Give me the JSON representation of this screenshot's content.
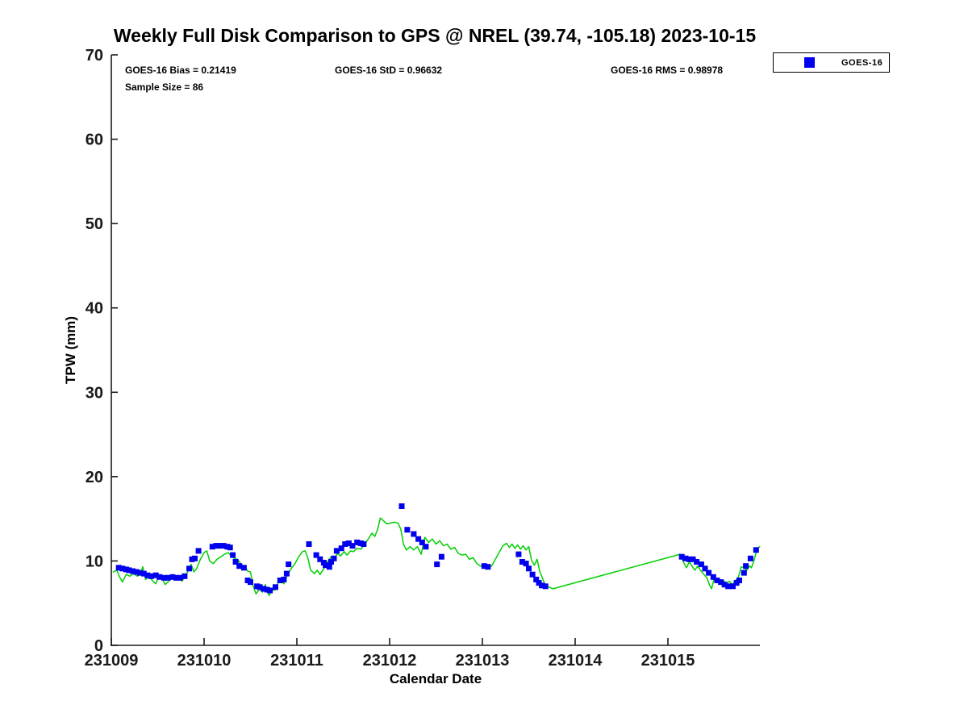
{
  "title": "Weekly Full Disk Comparison to GPS @ NREL (39.74, -105.18) 2023-10-15",
  "stats": {
    "bias": "GOES-16 Bias = 0.21419",
    "std": "GOES-16 StD = 0.96632",
    "rms": "GOES-16 RMS = 0.98978",
    "sample": "Sample Size = 86"
  },
  "legend": {
    "entries": [
      {
        "label": "GOES-16",
        "marker": "square",
        "color": "#0000ee"
      }
    ]
  },
  "chart_data": {
    "type": "line",
    "title": "Weekly Full Disk Comparison to GPS @ NREL (39.74, -105.18) 2023-10-15",
    "xlabel": "Calendar Date",
    "ylabel": "TPW (mm)",
    "xlim": [
      231009,
      231016
    ],
    "ylim": [
      0,
      70
    ],
    "x_ticks": [
      {
        "value": 231009,
        "label": "231009"
      },
      {
        "value": 231010,
        "label": "231010"
      },
      {
        "value": 231011,
        "label": "231011"
      },
      {
        "value": 231012,
        "label": "231012"
      },
      {
        "value": 231013,
        "label": "231013"
      },
      {
        "value": 231014,
        "label": "231014"
      },
      {
        "value": 231015,
        "label": "231015"
      }
    ],
    "y_ticks": [
      0,
      10,
      20,
      30,
      40,
      50,
      60,
      70
    ],
    "grid": false,
    "legend_position": "top-right",
    "sample_size": 86,
    "series": [
      {
        "name": "GPS",
        "type": "line",
        "color": "#00d000",
        "points": [
          [
            231009.02,
            8.7
          ],
          [
            231009.06,
            8.9
          ],
          [
            231009.09,
            8.1
          ],
          [
            231009.12,
            7.5
          ],
          [
            231009.16,
            8.4
          ],
          [
            231009.2,
            8.2
          ],
          [
            231009.24,
            8.5
          ],
          [
            231009.28,
            8.2
          ],
          [
            231009.31,
            8.4
          ],
          [
            231009.34,
            9.3
          ],
          [
            231009.37,
            7.8
          ],
          [
            231009.41,
            8.2
          ],
          [
            231009.44,
            7.7
          ],
          [
            231009.48,
            7.3
          ],
          [
            231009.51,
            8.2
          ],
          [
            231009.55,
            7.9
          ],
          [
            231009.58,
            7.2
          ],
          [
            231009.62,
            7.6
          ],
          [
            231009.65,
            8.3
          ],
          [
            231009.69,
            7.9
          ],
          [
            231009.72,
            8.3
          ],
          [
            231009.76,
            7.6
          ],
          [
            231009.8,
            8.2
          ],
          [
            231009.83,
            8.9
          ],
          [
            231009.86,
            9.6
          ],
          [
            231009.89,
            8.7
          ],
          [
            231009.92,
            9.1
          ],
          [
            231009.96,
            10.2
          ],
          [
            231010.0,
            11.0
          ],
          [
            231010.03,
            11.2
          ],
          [
            231010.06,
            10.0
          ],
          [
            231010.1,
            9.7
          ],
          [
            231010.14,
            10.2
          ],
          [
            231010.18,
            10.5
          ],
          [
            231010.22,
            10.8
          ],
          [
            231010.26,
            11.0
          ],
          [
            231010.3,
            10.5
          ],
          [
            231010.33,
            10.3
          ],
          [
            231010.36,
            10.2
          ],
          [
            231010.4,
            9.6
          ],
          [
            231010.44,
            9.3
          ],
          [
            231010.47,
            8.8
          ],
          [
            231010.5,
            8.7
          ],
          [
            231010.53,
            7.0
          ],
          [
            231010.56,
            6.1
          ],
          [
            231010.6,
            6.7
          ],
          [
            231010.63,
            6.3
          ],
          [
            231010.66,
            7.2
          ],
          [
            231010.7,
            5.9
          ],
          [
            231010.73,
            6.5
          ],
          [
            231010.77,
            6.6
          ],
          [
            231010.8,
            7.5
          ],
          [
            231010.83,
            7.9
          ],
          [
            231010.86,
            7.3
          ],
          [
            231010.9,
            8.4
          ],
          [
            231010.94,
            9.1
          ],
          [
            231010.98,
            9.7
          ],
          [
            231011.02,
            10.5
          ],
          [
            231011.06,
            11.1
          ],
          [
            231011.09,
            11.2
          ],
          [
            231011.12,
            10.3
          ],
          [
            231011.15,
            8.9
          ],
          [
            231011.19,
            8.5
          ],
          [
            231011.22,
            8.9
          ],
          [
            231011.25,
            8.4
          ],
          [
            231011.29,
            9.1
          ],
          [
            231011.33,
            9.9
          ],
          [
            231011.37,
            10.5
          ],
          [
            231011.41,
            10.4
          ],
          [
            231011.44,
            10.9
          ],
          [
            231011.47,
            10.6
          ],
          [
            231011.51,
            11.1
          ],
          [
            231011.54,
            10.7
          ],
          [
            231011.58,
            11.2
          ],
          [
            231011.61,
            11.1
          ],
          [
            231011.65,
            11.5
          ],
          [
            231011.69,
            11.4
          ],
          [
            231011.73,
            12.0
          ],
          [
            231011.77,
            12.6
          ],
          [
            231011.81,
            13.3
          ],
          [
            231011.84,
            12.9
          ],
          [
            231011.87,
            13.7
          ],
          [
            231011.9,
            15.1
          ],
          [
            231011.93,
            14.8
          ],
          [
            231011.97,
            14.4
          ],
          [
            231012.01,
            14.5
          ],
          [
            231012.05,
            14.6
          ],
          [
            231012.09,
            14.5
          ],
          [
            231012.12,
            13.8
          ],
          [
            231012.15,
            12.0
          ],
          [
            231012.18,
            11.3
          ],
          [
            231012.22,
            11.7
          ],
          [
            231012.26,
            11.3
          ],
          [
            231012.3,
            11.7
          ],
          [
            231012.34,
            10.8
          ],
          [
            231012.38,
            12.8
          ],
          [
            231012.42,
            12.2
          ],
          [
            231012.46,
            12.6
          ],
          [
            231012.5,
            12.0
          ],
          [
            231012.54,
            12.4
          ],
          [
            231012.58,
            11.8
          ],
          [
            231012.62,
            12.0
          ],
          [
            231012.66,
            11.4
          ],
          [
            231012.7,
            11.6
          ],
          [
            231012.74,
            10.9
          ],
          [
            231012.78,
            10.7
          ],
          [
            231012.82,
            10.8
          ],
          [
            231012.86,
            10.2
          ],
          [
            231012.9,
            10.4
          ],
          [
            231012.94,
            9.7
          ],
          [
            231012.98,
            9.4
          ],
          [
            231013.02,
            9.5
          ],
          [
            231013.06,
            9.2
          ],
          [
            231013.1,
            9.4
          ],
          [
            231013.14,
            10.2
          ],
          [
            231013.18,
            11.0
          ],
          [
            231013.22,
            11.8
          ],
          [
            231013.26,
            12.1
          ],
          [
            231013.29,
            11.6
          ],
          [
            231013.32,
            12.0
          ],
          [
            231013.35,
            11.5
          ],
          [
            231013.38,
            11.9
          ],
          [
            231013.41,
            11.4
          ],
          [
            231013.44,
            11.8
          ],
          [
            231013.47,
            11.3
          ],
          [
            231013.5,
            11.7
          ],
          [
            231013.53,
            10.1
          ],
          [
            231013.56,
            9.5
          ],
          [
            231013.59,
            10.2
          ],
          [
            231013.62,
            8.7
          ],
          [
            231013.65,
            7.9
          ],
          [
            231013.68,
            7.1
          ],
          [
            231013.72,
            6.9
          ],
          [
            231013.76,
            6.7
          ],
          [
            231015.13,
            10.8
          ],
          [
            231015.17,
            9.8
          ],
          [
            231015.2,
            9.2
          ],
          [
            231015.23,
            9.9
          ],
          [
            231015.26,
            9.4
          ],
          [
            231015.29,
            8.9
          ],
          [
            231015.32,
            9.4
          ],
          [
            231015.35,
            8.9
          ],
          [
            231015.38,
            8.5
          ],
          [
            231015.42,
            8.0
          ],
          [
            231015.45,
            7.1
          ],
          [
            231015.47,
            6.7
          ],
          [
            231015.5,
            8.0
          ],
          [
            231015.53,
            7.7
          ],
          [
            231015.56,
            7.4
          ],
          [
            231015.6,
            7.7
          ],
          [
            231015.63,
            7.3
          ],
          [
            231015.66,
            7.6
          ],
          [
            231015.7,
            7.2
          ],
          [
            231015.73,
            7.7
          ],
          [
            231015.76,
            8.1
          ],
          [
            231015.79,
            9.3
          ],
          [
            231015.82,
            9.2
          ],
          [
            231015.85,
            8.9
          ],
          [
            231015.88,
            9.4
          ],
          [
            231015.9,
            9.2
          ],
          [
            231015.93,
            10.1
          ],
          [
            231015.96,
            11.4
          ],
          [
            231015.99,
            11.7
          ]
        ]
      },
      {
        "name": "GOES-16",
        "type": "scatter",
        "color": "#0000ee",
        "marker": "square",
        "points": [
          [
            231009.08,
            9.2
          ],
          [
            231009.12,
            9.1
          ],
          [
            231009.16,
            9.0
          ],
          [
            231009.19,
            8.9
          ],
          [
            231009.23,
            8.8
          ],
          [
            231009.27,
            8.7
          ],
          [
            231009.31,
            8.6
          ],
          [
            231009.35,
            8.5
          ],
          [
            231009.39,
            8.3
          ],
          [
            231009.43,
            8.2
          ],
          [
            231009.48,
            8.3
          ],
          [
            231009.52,
            8.1
          ],
          [
            231009.57,
            8.0
          ],
          [
            231009.61,
            8.0
          ],
          [
            231009.66,
            8.1
          ],
          [
            231009.7,
            8.0
          ],
          [
            231009.74,
            8.0
          ],
          [
            231009.79,
            8.2
          ],
          [
            231009.84,
            9.1
          ],
          [
            231009.87,
            10.2
          ],
          [
            231009.9,
            10.3
          ],
          [
            231009.94,
            11.2
          ],
          [
            231010.09,
            11.7
          ],
          [
            231010.13,
            11.8
          ],
          [
            231010.17,
            11.8
          ],
          [
            231010.21,
            11.8
          ],
          [
            231010.25,
            11.7
          ],
          [
            231010.28,
            11.6
          ],
          [
            231010.31,
            10.7
          ],
          [
            231010.34,
            9.9
          ],
          [
            231010.38,
            9.4
          ],
          [
            231010.43,
            9.2
          ],
          [
            231010.47,
            7.7
          ],
          [
            231010.5,
            7.5
          ],
          [
            231010.57,
            7.0
          ],
          [
            231010.6,
            6.9
          ],
          [
            231010.64,
            6.7
          ],
          [
            231010.68,
            6.6
          ],
          [
            231010.71,
            6.5
          ],
          [
            231010.77,
            6.9
          ],
          [
            231010.82,
            7.7
          ],
          [
            231010.86,
            7.8
          ],
          [
            231010.89,
            8.5
          ],
          [
            231010.91,
            9.6
          ],
          [
            231011.13,
            12.0
          ],
          [
            231011.21,
            10.7
          ],
          [
            231011.25,
            10.2
          ],
          [
            231011.29,
            9.8
          ],
          [
            231011.31,
            9.5
          ],
          [
            231011.35,
            9.3
          ],
          [
            231011.37,
            9.9
          ],
          [
            231011.4,
            10.3
          ],
          [
            231011.43,
            11.2
          ],
          [
            231011.48,
            11.5
          ],
          [
            231011.52,
            12.0
          ],
          [
            231011.56,
            12.1
          ],
          [
            231011.6,
            11.8
          ],
          [
            231011.65,
            12.2
          ],
          [
            231011.69,
            12.1
          ],
          [
            231011.72,
            12.0
          ],
          [
            231012.13,
            16.5
          ],
          [
            231012.19,
            13.7
          ],
          [
            231012.26,
            13.2
          ],
          [
            231012.31,
            12.6
          ],
          [
            231012.35,
            12.2
          ],
          [
            231012.39,
            11.7
          ],
          [
            231012.51,
            9.6
          ],
          [
            231012.56,
            10.5
          ],
          [
            231013.02,
            9.4
          ],
          [
            231013.06,
            9.3
          ],
          [
            231013.39,
            10.8
          ],
          [
            231013.43,
            9.9
          ],
          [
            231013.47,
            9.7
          ],
          [
            231013.5,
            9.1
          ],
          [
            231013.54,
            8.4
          ],
          [
            231013.58,
            7.8
          ],
          [
            231013.61,
            7.4
          ],
          [
            231013.64,
            7.1
          ],
          [
            231013.68,
            7.0
          ],
          [
            231015.15,
            10.5
          ],
          [
            231015.19,
            10.3
          ],
          [
            231015.23,
            10.2
          ],
          [
            231015.27,
            10.2
          ],
          [
            231015.31,
            9.9
          ],
          [
            231015.36,
            9.6
          ],
          [
            231015.4,
            9.1
          ],
          [
            231015.44,
            8.6
          ],
          [
            231015.49,
            8.1
          ],
          [
            231015.53,
            7.7
          ],
          [
            231015.57,
            7.5
          ],
          [
            231015.61,
            7.2
          ],
          [
            231015.65,
            7.0
          ],
          [
            231015.7,
            7.0
          ],
          [
            231015.74,
            7.4
          ],
          [
            231015.77,
            7.7
          ],
          [
            231015.82,
            8.6
          ],
          [
            231015.84,
            9.4
          ],
          [
            231015.89,
            10.3
          ],
          [
            231015.95,
            11.3
          ]
        ]
      }
    ]
  }
}
